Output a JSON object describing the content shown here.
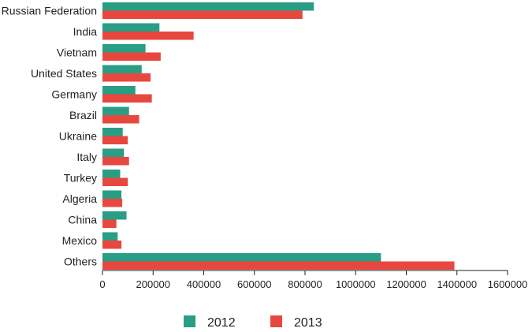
{
  "chart_data": {
    "type": "bar",
    "orientation": "horizontal",
    "categories": [
      "Russian Federation",
      "India",
      "Vietnam",
      "United States",
      "Germany",
      "Brazil",
      "Ukraine",
      "Italy",
      "Turkey",
      "Algeria",
      "China",
      "Mexico",
      "Others"
    ],
    "series": [
      {
        "name": "2012",
        "color": "#2a9d85",
        "values": [
          835000,
          225000,
          170000,
          155000,
          130000,
          105000,
          80000,
          85000,
          70000,
          75000,
          95000,
          60000,
          1100000
        ]
      },
      {
        "name": "2013",
        "color": "#e8473f",
        "values": [
          790000,
          360000,
          230000,
          190000,
          195000,
          145000,
          100000,
          105000,
          100000,
          78000,
          55000,
          75000,
          1390000
        ]
      }
    ],
    "x_ticks": [
      "0",
      "200000",
      "400000",
      "600000",
      "800000",
      "1000000",
      "1200000",
      "1400000",
      "1600000"
    ],
    "xlim": [
      0,
      1600000
    ],
    "legend_position": "bottom",
    "grid": false
  }
}
